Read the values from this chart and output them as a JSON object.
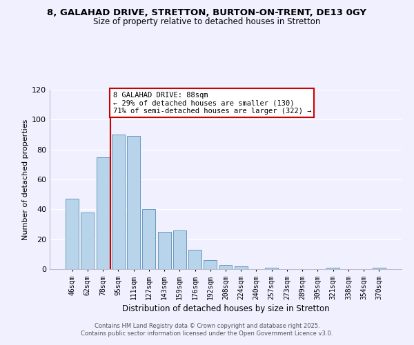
{
  "title": "8, GALAHAD DRIVE, STRETTON, BURTON-ON-TRENT, DE13 0GY",
  "subtitle": "Size of property relative to detached houses in Stretton",
  "xlabel": "Distribution of detached houses by size in Stretton",
  "ylabel": "Number of detached properties",
  "bar_labels": [
    "46sqm",
    "62sqm",
    "78sqm",
    "95sqm",
    "111sqm",
    "127sqm",
    "143sqm",
    "159sqm",
    "176sqm",
    "192sqm",
    "208sqm",
    "224sqm",
    "240sqm",
    "257sqm",
    "273sqm",
    "289sqm",
    "305sqm",
    "321sqm",
    "338sqm",
    "354sqm",
    "370sqm"
  ],
  "bar_values": [
    47,
    38,
    75,
    90,
    89,
    40,
    25,
    26,
    13,
    6,
    3,
    2,
    0,
    1,
    0,
    0,
    0,
    1,
    0,
    0,
    1
  ],
  "bar_color": "#b8d4ea",
  "bar_edge_color": "#6699bb",
  "ylim": [
    0,
    120
  ],
  "yticks": [
    0,
    20,
    40,
    60,
    80,
    100,
    120
  ],
  "annotation_title": "8 GALAHAD DRIVE: 88sqm",
  "annotation_line1": "← 29% of detached houses are smaller (130)",
  "annotation_line2": "71% of semi-detached houses are larger (322) →",
  "annotation_box_facecolor": "#ffffff",
  "annotation_box_edgecolor": "#cc0000",
  "vline_color": "#cc0000",
  "footer1": "Contains HM Land Registry data © Crown copyright and database right 2025.",
  "footer2": "Contains public sector information licensed under the Open Government Licence v3.0.",
  "background_color": "#f0f0ff",
  "grid_color": "#ffffff",
  "spine_color": "#bbbbcc",
  "tick_label_font": "monospace",
  "vline_x_index": 2.5
}
